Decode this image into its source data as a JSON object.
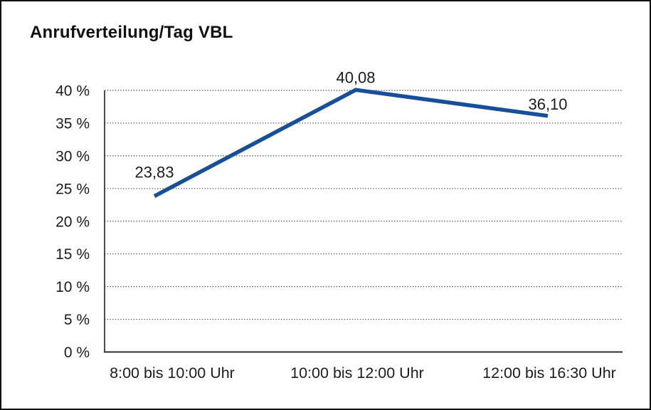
{
  "frame": {
    "background": "#ffffff",
    "border_color": "#111111"
  },
  "chart_data": {
    "type": "line",
    "title": "Anrufverteilung/Tag VBL",
    "categories": [
      "8:00 bis 10:00 Uhr",
      "10:00 bis 12:00 Uhr",
      "12:00 bis 16:30 Uhr"
    ],
    "values": [
      23.83,
      40.08,
      36.1
    ],
    "value_labels": [
      "23,83",
      "40,08",
      "36,10"
    ],
    "xlabel": "",
    "ylabel": "",
    "ylim": [
      0,
      40
    ],
    "ytick_values": [
      0,
      5,
      10,
      15,
      20,
      25,
      30,
      35,
      40
    ],
    "ytick_labels": [
      "0 %",
      "5 %",
      "10 %",
      "15 %",
      "20 %",
      "25 %",
      "30 %",
      "35 %",
      "40 %"
    ],
    "grid": "horizontal-dotted",
    "legend": "none",
    "line_color": "#174f9b",
    "axis_color": "#2e2e2e",
    "gridline_color": "#4d4d4d",
    "text_color": "#1c1c1c"
  }
}
